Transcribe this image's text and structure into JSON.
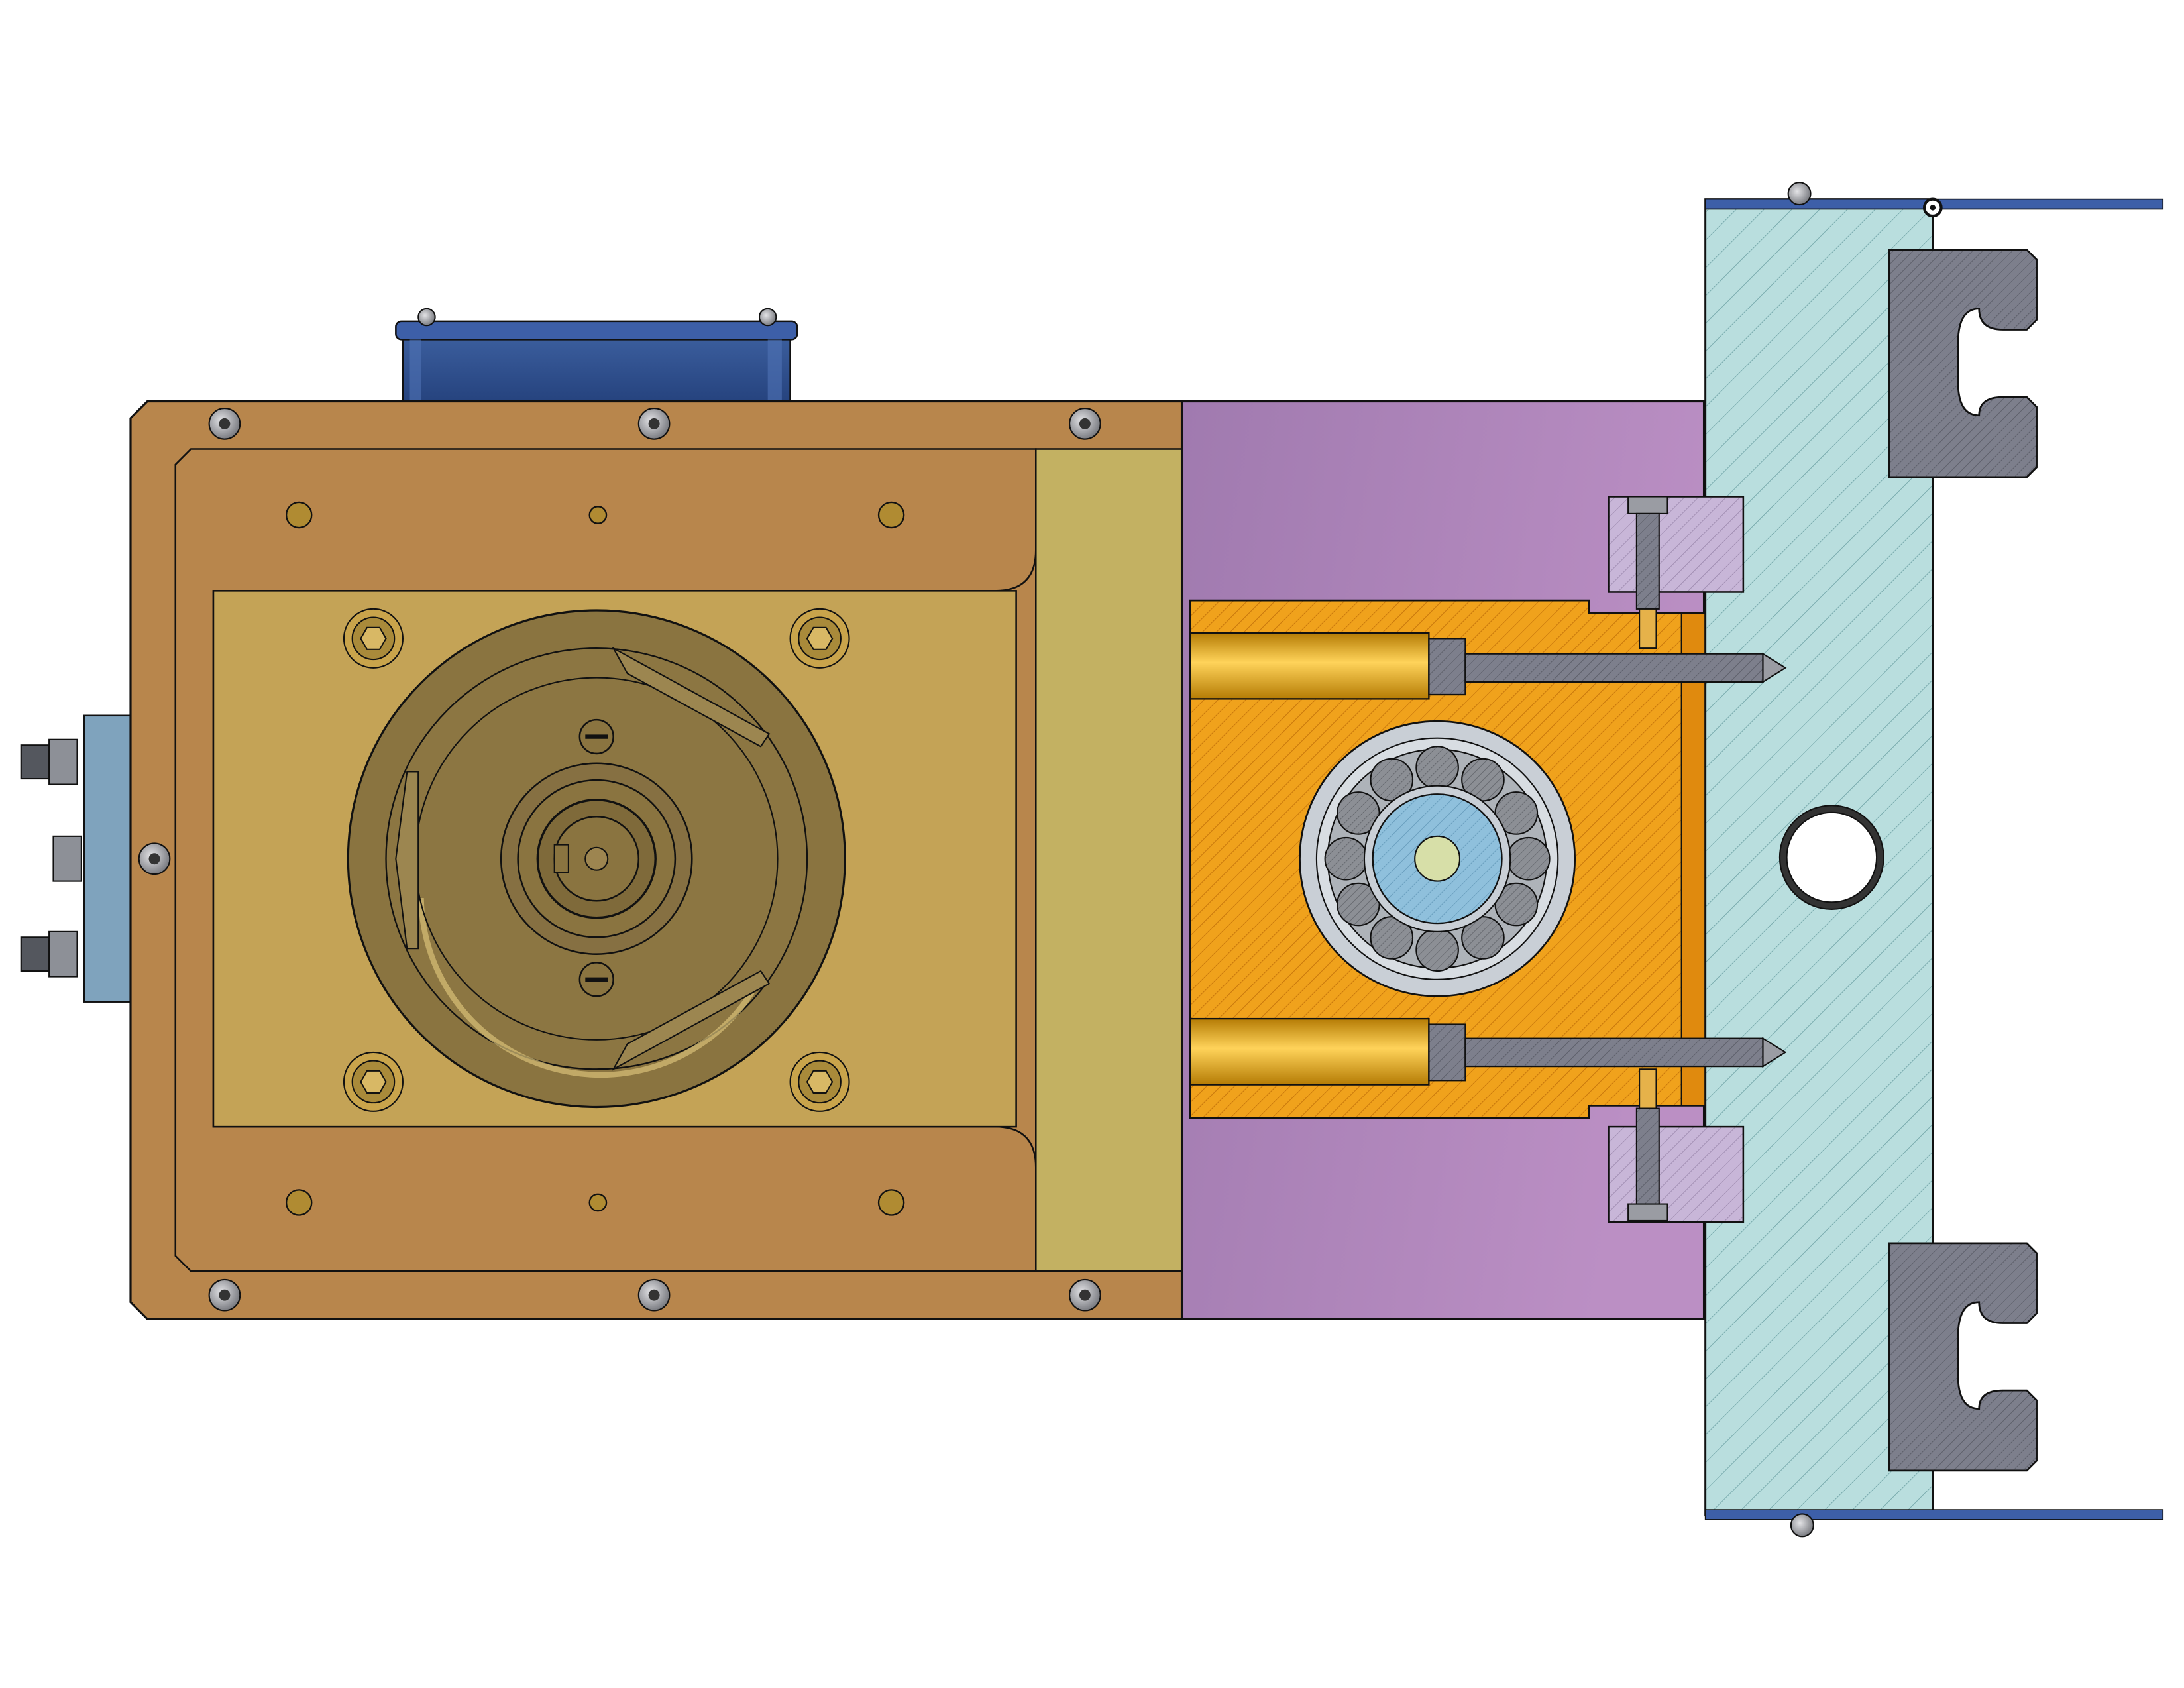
{
  "figure": {
    "type": "mechanical-cad-section-view",
    "background": "#ffffff",
    "text_labels": []
  },
  "colors": {
    "outline": "#111111",
    "housing_copper": "#b8864c",
    "base_plate": "#c4a356",
    "olive_strip": "#c3b162",
    "rotor_dark": "#8a7440",
    "motor_block_blue": "#2f4f8f",
    "connector_block": "#7fa3bd",
    "purple_block": "#a880b5",
    "section_orange": "#f0a21c",
    "bore_gold": "#d9990f",
    "bearing_race": "#c9cfd6",
    "ball_gray": "#8c8f95",
    "shaft_blue": "#8fc0dc",
    "shaft_core": "#d7dfa8",
    "mount_plate_cyan": "#b9dede",
    "rail_gray": "#7d7f8c",
    "clamp_lilac": "#c8b6d8",
    "bolt_gray": "#9a9ca3",
    "edge_bar_blue": "#3d5fa8"
  },
  "parts": [
    {
      "name": "motor-housing",
      "color_key": "housing_copper"
    },
    {
      "name": "motor-top-cover",
      "color_key": "motor_block_blue"
    },
    {
      "name": "connector-block",
      "color_key": "connector_block"
    },
    {
      "name": "base-plate",
      "color_key": "base_plate"
    },
    {
      "name": "rotor-disk",
      "color_key": "rotor_dark"
    },
    {
      "name": "adapter-strip",
      "color_key": "olive_strip"
    },
    {
      "name": "coupling-block",
      "color_key": "purple_block"
    },
    {
      "name": "bearing-carrier",
      "color_key": "section_orange"
    },
    {
      "name": "ball-bearing",
      "color_key": "bearing_race"
    },
    {
      "name": "mounting-plate",
      "color_key": "mount_plate_cyan"
    },
    {
      "name": "t-slot-rail",
      "color_key": "rail_gray"
    },
    {
      "name": "clamp-block",
      "color_key": "clamp_lilac"
    },
    {
      "name": "socket-head-cap-screw",
      "color_key": "bolt_gray"
    },
    {
      "name": "edge-flange",
      "color_key": "edge_bar_blue"
    }
  ]
}
